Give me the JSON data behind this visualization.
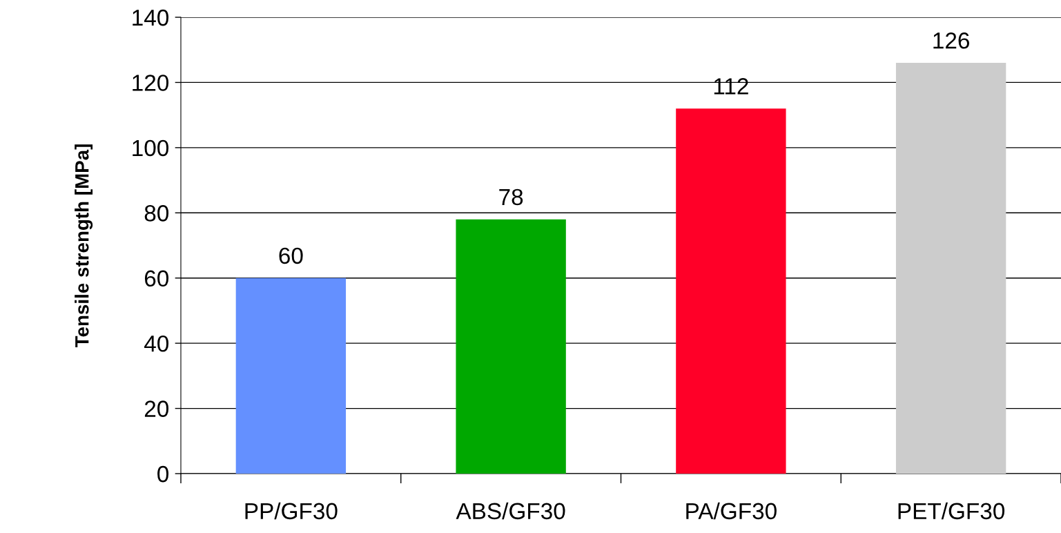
{
  "chart_data": {
    "type": "bar",
    "ylabel": "Tensile strength [MPa]",
    "categories": [
      "PP/GF30",
      "ABS/GF30",
      "PA/GF30",
      "PET/GF30"
    ],
    "values": [
      60,
      78,
      112,
      126
    ],
    "colors": [
      "#6490ff",
      "#00a800",
      "#ff0028",
      "#cccccc"
    ],
    "ylim": [
      0,
      140
    ],
    "yticks": [
      0,
      20,
      40,
      60,
      80,
      100,
      120,
      140
    ],
    "grid": "y",
    "data_labels": true,
    "legend": false
  }
}
